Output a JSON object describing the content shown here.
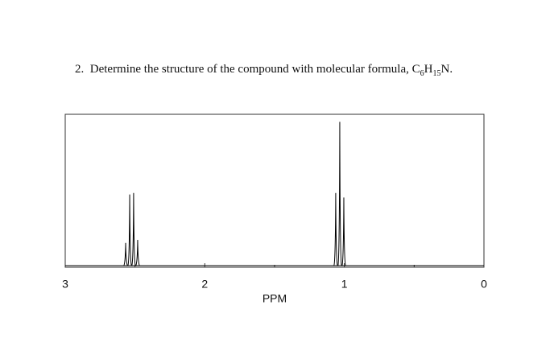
{
  "question": {
    "number": "2.",
    "text": "Determine the structure of the compound with molecular formula, ",
    "formula": [
      "C",
      "6",
      "H",
      "15",
      "N."
    ]
  },
  "chart_data": {
    "type": "spectrum",
    "xlabel": "PPM",
    "xlim": [
      3,
      0
    ],
    "xticks": [
      3,
      2,
      1,
      0
    ],
    "xminorticks": [
      2.5,
      1.5,
      0.5
    ],
    "ylim": [
      0,
      100
    ],
    "color": "#000000",
    "x": [
      2.567,
      2.538,
      2.51,
      2.481,
      1.062,
      1.033,
      1.004
    ],
    "values": [
      15,
      47,
      48,
      17,
      48,
      95,
      45
    ]
  }
}
